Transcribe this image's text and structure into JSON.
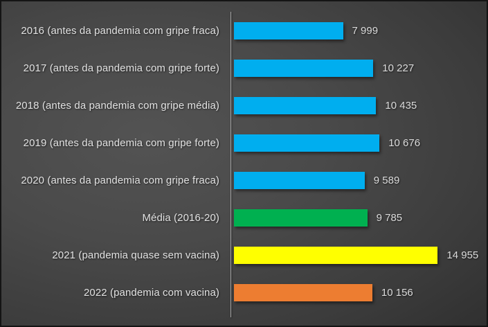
{
  "chart_data": {
    "type": "bar",
    "orientation": "horizontal",
    "title": "",
    "xlabel": "",
    "ylabel": "",
    "grid": false,
    "legend": false,
    "data_labels": true,
    "xlim": [
      0,
      16000
    ],
    "categories": [
      "2016 (antes da pandemia com gripe fraca)",
      "2017 (antes da pandemia com gripe forte)",
      "2018 (antes da pandemia com gripe média)",
      "2019 (antes da pandemia com gripe forte)",
      "2020 (antes da pandemia com gripe fraca)",
      "Média (2016-20)",
      "2021 (pandemia quase sem vacina)",
      "2022 (pandemia com vacina)"
    ],
    "values": [
      7999,
      10227,
      10435,
      10676,
      9589,
      9785,
      14955,
      10156
    ],
    "value_labels": [
      "7 999",
      "10 227",
      "10 435",
      "10 676",
      "9 589",
      "9 785",
      "14 955",
      "10 156"
    ],
    "bar_colors": [
      "#00AEEF",
      "#00AEEF",
      "#00AEEF",
      "#00AEEF",
      "#00AEEF",
      "#00B050",
      "#FFFF00",
      "#ED7D31"
    ],
    "colors": {
      "background_center": "#4a4a4a",
      "background_edge": "#232323",
      "axis_line": "#a6a6a6",
      "text": "#e2e2e2"
    }
  }
}
